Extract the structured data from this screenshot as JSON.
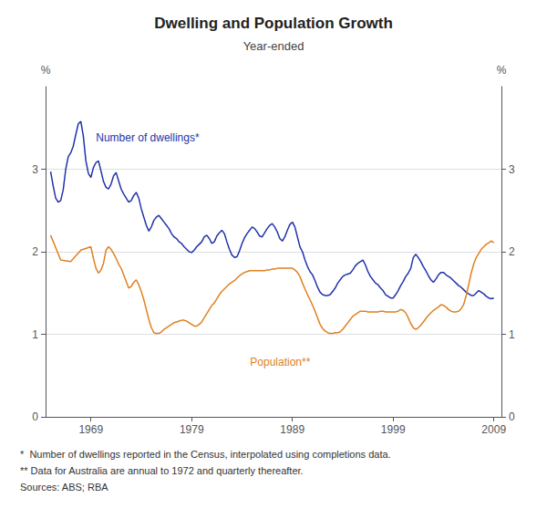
{
  "chart_data": {
    "type": "line",
    "title": "Dwelling and Population Growth",
    "subtitle": "Year-ended",
    "ylabel": "%",
    "ylabel_right": "%",
    "xlim": [
      1964.5,
      2009.75
    ],
    "xticks": [
      1969,
      1979,
      1989,
      1999,
      2009
    ],
    "ylim": [
      0,
      4.0
    ],
    "yticks": [
      0,
      1,
      2,
      3
    ],
    "y2lim": [
      0,
      4.0
    ],
    "y2ticks": [
      0,
      1,
      2,
      3
    ],
    "grid": true,
    "footnotes": [
      "*  Number of dwellings reported in the Census, interpolated using completions data.",
      "** Data for Australia are annual to 1972 and quarterly thereafter.",
      "Sources: ABS; RBA"
    ],
    "series": [
      {
        "name": "Number of dwellings*",
        "color": "#2233AA",
        "x": [
          1965.0,
          1965.25,
          1965.5,
          1965.75,
          1966.0,
          1966.25,
          1966.5,
          1966.75,
          1967.0,
          1967.25,
          1967.5,
          1967.75,
          1968.0,
          1968.25,
          1968.5,
          1968.75,
          1969.0,
          1969.25,
          1969.5,
          1969.75,
          1970.0,
          1970.25,
          1970.5,
          1970.75,
          1971.0,
          1971.25,
          1971.5,
          1971.75,
          1972.0,
          1972.25,
          1972.5,
          1972.75,
          1973.0,
          1973.25,
          1973.5,
          1973.75,
          1974.0,
          1974.25,
          1974.5,
          1974.75,
          1975.0,
          1975.25,
          1975.5,
          1975.75,
          1976.0,
          1976.25,
          1976.5,
          1976.75,
          1977.0,
          1977.25,
          1977.5,
          1977.75,
          1978.0,
          1978.25,
          1978.5,
          1978.75,
          1979.0,
          1979.25,
          1979.5,
          1979.75,
          1980.0,
          1980.25,
          1980.5,
          1980.75,
          1981.0,
          1981.25,
          1981.5,
          1981.75,
          1982.0,
          1982.25,
          1982.5,
          1982.75,
          1983.0,
          1983.25,
          1983.5,
          1983.75,
          1984.0,
          1984.25,
          1984.5,
          1984.75,
          1985.0,
          1985.25,
          1985.5,
          1985.75,
          1986.0,
          1986.25,
          1986.5,
          1986.75,
          1987.0,
          1987.25,
          1987.5,
          1987.75,
          1988.0,
          1988.25,
          1988.5,
          1988.75,
          1989.0,
          1989.25,
          1989.5,
          1989.75,
          1990.0,
          1990.25,
          1990.5,
          1990.75,
          1991.0,
          1991.25,
          1991.5,
          1991.75,
          1992.0,
          1992.25,
          1992.5,
          1992.75,
          1993.0,
          1993.25,
          1993.5,
          1993.75,
          1994.0,
          1994.25,
          1994.5,
          1994.75,
          1995.0,
          1995.25,
          1995.5,
          1995.75,
          1996.0,
          1996.25,
          1996.5,
          1996.75,
          1997.0,
          1997.25,
          1997.5,
          1997.75,
          1998.0,
          1998.25,
          1998.5,
          1998.75,
          1999.0,
          1999.25,
          1999.5,
          1999.75,
          2000.0,
          2000.25,
          2000.5,
          2000.75,
          2001.0,
          2001.25,
          2001.5,
          2001.75,
          2002.0,
          2002.25,
          2002.5,
          2002.75,
          2003.0,
          2003.25,
          2003.5,
          2003.75,
          2004.0,
          2004.25,
          2004.5,
          2004.75,
          2005.0,
          2005.25,
          2005.5,
          2005.75,
          2006.0,
          2006.25,
          2006.5,
          2006.75,
          2007.0,
          2007.25,
          2007.5,
          2007.75,
          2008.0,
          2008.25,
          2008.5,
          2008.75,
          2009.0
        ],
        "values": [
          2.97,
          2.8,
          2.65,
          2.6,
          2.62,
          2.75,
          3.0,
          3.15,
          3.2,
          3.28,
          3.42,
          3.55,
          3.58,
          3.4,
          3.1,
          2.95,
          2.9,
          3.02,
          3.08,
          3.1,
          2.98,
          2.85,
          2.78,
          2.76,
          2.82,
          2.92,
          2.96,
          2.86,
          2.76,
          2.7,
          2.65,
          2.6,
          2.62,
          2.68,
          2.72,
          2.65,
          2.52,
          2.42,
          2.32,
          2.25,
          2.3,
          2.38,
          2.42,
          2.44,
          2.4,
          2.36,
          2.32,
          2.28,
          2.22,
          2.18,
          2.16,
          2.12,
          2.1,
          2.06,
          2.03,
          2.0,
          1.99,
          2.02,
          2.06,
          2.09,
          2.12,
          2.18,
          2.2,
          2.16,
          2.1,
          2.12,
          2.19,
          2.23,
          2.26,
          2.22,
          2.12,
          2.03,
          1.96,
          1.93,
          1.94,
          2.01,
          2.1,
          2.17,
          2.22,
          2.26,
          2.3,
          2.28,
          2.24,
          2.19,
          2.18,
          2.23,
          2.28,
          2.32,
          2.34,
          2.3,
          2.24,
          2.16,
          2.13,
          2.18,
          2.26,
          2.33,
          2.36,
          2.3,
          2.18,
          2.06,
          2.0,
          1.9,
          1.82,
          1.76,
          1.72,
          1.65,
          1.57,
          1.51,
          1.48,
          1.47,
          1.47,
          1.48,
          1.52,
          1.56,
          1.62,
          1.66,
          1.7,
          1.72,
          1.73,
          1.74,
          1.78,
          1.83,
          1.86,
          1.88,
          1.9,
          1.84,
          1.76,
          1.7,
          1.66,
          1.62,
          1.6,
          1.56,
          1.53,
          1.48,
          1.46,
          1.44,
          1.44,
          1.48,
          1.53,
          1.59,
          1.64,
          1.7,
          1.74,
          1.8,
          1.93,
          1.97,
          1.93,
          1.88,
          1.82,
          1.77,
          1.71,
          1.66,
          1.63,
          1.67,
          1.72,
          1.75,
          1.75,
          1.72,
          1.7,
          1.68,
          1.65,
          1.62,
          1.59,
          1.57,
          1.54,
          1.51,
          1.49,
          1.47,
          1.47,
          1.5,
          1.53,
          1.51,
          1.49,
          1.46,
          1.44,
          1.43,
          1.44
        ]
      },
      {
        "name": "Population**",
        "color": "#E08020",
        "x": [
          1965.0,
          1966.0,
          1967.0,
          1968.0,
          1969.0,
          1969.25,
          1969.5,
          1969.75,
          1970.0,
          1970.25,
          1970.5,
          1970.75,
          1971.0,
          1971.25,
          1971.5,
          1971.75,
          1972.0,
          1972.25,
          1972.5,
          1972.75,
          1973.0,
          1973.25,
          1973.5,
          1973.75,
          1974.0,
          1974.25,
          1974.5,
          1974.75,
          1975.0,
          1975.25,
          1975.5,
          1975.75,
          1976.0,
          1976.25,
          1976.5,
          1976.75,
          1977.0,
          1977.25,
          1977.5,
          1977.75,
          1978.0,
          1978.25,
          1978.5,
          1978.75,
          1979.0,
          1979.25,
          1979.5,
          1979.75,
          1980.0,
          1980.25,
          1980.5,
          1980.75,
          1981.0,
          1981.25,
          1981.5,
          1981.75,
          1982.0,
          1982.25,
          1982.5,
          1982.75,
          1983.0,
          1983.25,
          1983.5,
          1983.75,
          1984.0,
          1984.25,
          1984.5,
          1984.75,
          1985.0,
          1985.25,
          1985.5,
          1985.75,
          1986.0,
          1986.25,
          1986.5,
          1986.75,
          1987.0,
          1987.25,
          1987.5,
          1987.75,
          1988.0,
          1988.25,
          1988.5,
          1988.75,
          1989.0,
          1989.25,
          1989.5,
          1989.75,
          1990.0,
          1990.25,
          1990.5,
          1990.75,
          1991.0,
          1991.25,
          1991.5,
          1991.75,
          1992.0,
          1992.25,
          1992.5,
          1992.75,
          1993.0,
          1993.25,
          1993.5,
          1993.75,
          1994.0,
          1994.25,
          1994.5,
          1994.75,
          1995.0,
          1995.25,
          1995.5,
          1995.75,
          1996.0,
          1996.25,
          1996.5,
          1996.75,
          1997.0,
          1997.25,
          1997.5,
          1997.75,
          1998.0,
          1998.25,
          1998.5,
          1998.75,
          1999.0,
          1999.25,
          1999.5,
          1999.75,
          2000.0,
          2000.25,
          2000.5,
          2000.75,
          2001.0,
          2001.25,
          2001.5,
          2001.75,
          2002.0,
          2002.25,
          2002.5,
          2002.75,
          2003.0,
          2003.25,
          2003.5,
          2003.75,
          2004.0,
          2004.25,
          2004.5,
          2004.75,
          2005.0,
          2005.25,
          2005.5,
          2005.75,
          2006.0,
          2006.25,
          2006.5,
          2006.75,
          2007.0,
          2007.25,
          2007.5,
          2007.75,
          2008.0,
          2008.25,
          2008.5,
          2008.75,
          2009.0
        ],
        "values": [
          2.2,
          1.9,
          1.88,
          2.02,
          2.06,
          1.92,
          1.8,
          1.74,
          1.78,
          1.86,
          2.02,
          2.06,
          2.03,
          1.98,
          1.92,
          1.85,
          1.8,
          1.72,
          1.64,
          1.56,
          1.58,
          1.63,
          1.66,
          1.6,
          1.52,
          1.42,
          1.3,
          1.18,
          1.08,
          1.02,
          1.01,
          1.01,
          1.03,
          1.06,
          1.08,
          1.1,
          1.12,
          1.14,
          1.15,
          1.16,
          1.17,
          1.17,
          1.16,
          1.14,
          1.12,
          1.1,
          1.1,
          1.12,
          1.15,
          1.2,
          1.25,
          1.3,
          1.35,
          1.38,
          1.43,
          1.48,
          1.52,
          1.55,
          1.58,
          1.61,
          1.63,
          1.65,
          1.68,
          1.71,
          1.73,
          1.75,
          1.76,
          1.77,
          1.77,
          1.77,
          1.77,
          1.77,
          1.77,
          1.77,
          1.78,
          1.78,
          1.79,
          1.79,
          1.8,
          1.8,
          1.8,
          1.8,
          1.8,
          1.8,
          1.8,
          1.78,
          1.75,
          1.7,
          1.62,
          1.55,
          1.48,
          1.42,
          1.35,
          1.28,
          1.2,
          1.12,
          1.07,
          1.04,
          1.02,
          1.01,
          1.01,
          1.02,
          1.02,
          1.03,
          1.06,
          1.1,
          1.14,
          1.18,
          1.22,
          1.24,
          1.26,
          1.28,
          1.28,
          1.28,
          1.27,
          1.27,
          1.27,
          1.27,
          1.27,
          1.28,
          1.28,
          1.27,
          1.27,
          1.27,
          1.27,
          1.27,
          1.28,
          1.3,
          1.29,
          1.26,
          1.2,
          1.13,
          1.08,
          1.06,
          1.08,
          1.11,
          1.15,
          1.19,
          1.23,
          1.26,
          1.29,
          1.31,
          1.33,
          1.36,
          1.35,
          1.33,
          1.3,
          1.28,
          1.27,
          1.27,
          1.28,
          1.31,
          1.36,
          1.47,
          1.6,
          1.74,
          1.85,
          1.93,
          1.98,
          2.03,
          2.06,
          2.09,
          2.11,
          2.13,
          2.11
        ]
      }
    ]
  }
}
